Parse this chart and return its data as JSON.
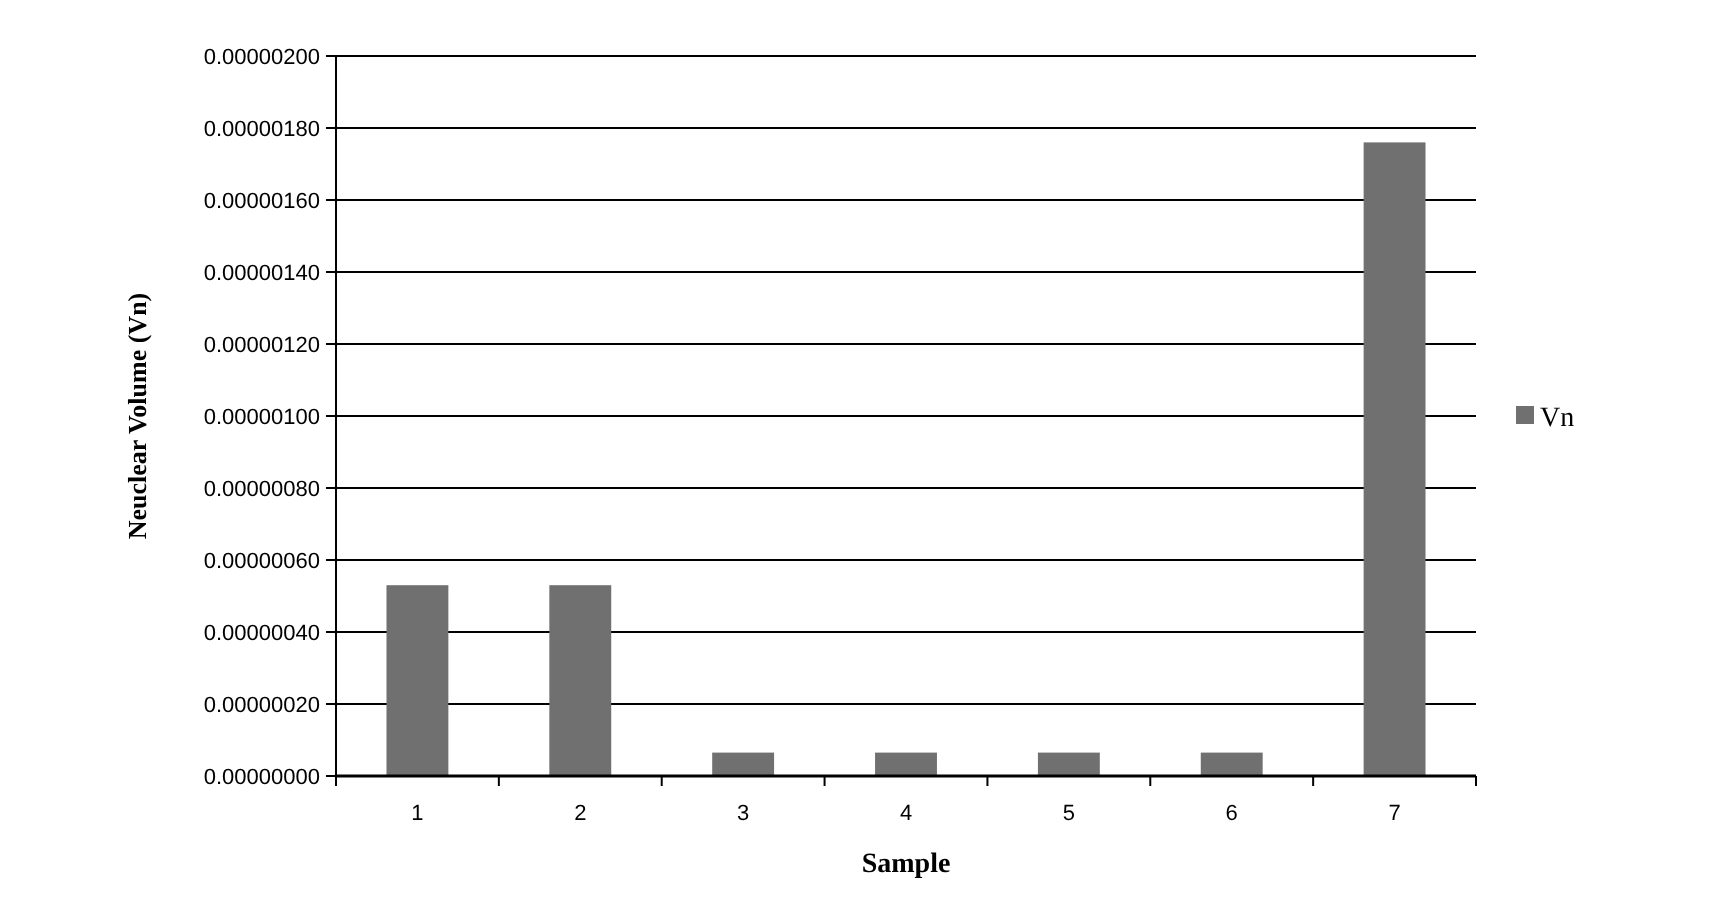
{
  "chart_data": {
    "type": "bar",
    "xlabel": "Sample",
    "ylabel": "Neuclear Volume (Vn)",
    "categories": [
      "1",
      "2",
      "3",
      "4",
      "5",
      "6",
      "7"
    ],
    "series": [
      {
        "name": "Vn",
        "color": "#707070",
        "values": [
          5.3e-07,
          5.3e-07,
          6.5e-08,
          6.5e-08,
          6.5e-08,
          6.5e-08,
          1.76e-06
        ]
      }
    ],
    "ylim": [
      0,
      2e-06
    ],
    "yticks": [
      {
        "value": 0,
        "label": "0.00000000"
      },
      {
        "value": 2e-07,
        "label": "0.00000020"
      },
      {
        "value": 4e-07,
        "label": "0.00000040"
      },
      {
        "value": 6e-07,
        "label": "0.00000060"
      },
      {
        "value": 8e-07,
        "label": "0.00000080"
      },
      {
        "value": 1e-06,
        "label": "0.00000100"
      },
      {
        "value": 1.2e-06,
        "label": "0.00000120"
      },
      {
        "value": 1.4e-06,
        "label": "0.00000140"
      },
      {
        "value": 1.6e-06,
        "label": "0.00000160"
      },
      {
        "value": 1.8e-06,
        "label": "0.00000180"
      },
      {
        "value": 2e-06,
        "label": "0.00000200"
      }
    ],
    "grid": "y",
    "legend": "right"
  }
}
